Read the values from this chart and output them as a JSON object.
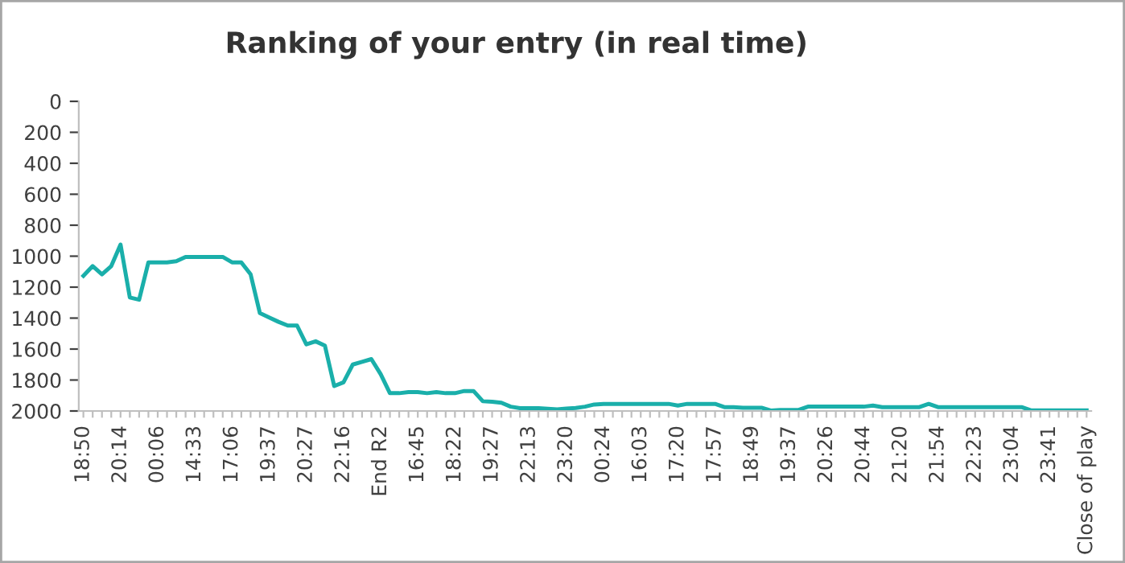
{
  "chart_data": {
    "type": "line",
    "title": "Ranking of your entry (in real time)",
    "categories": [
      "18:50",
      null,
      null,
      null,
      "20:14",
      null,
      null,
      null,
      "00:06",
      null,
      null,
      null,
      "14:33",
      null,
      null,
      null,
      "17:06",
      null,
      null,
      null,
      "19:37",
      null,
      null,
      null,
      "20:27",
      null,
      null,
      null,
      "22:16",
      null,
      null,
      null,
      "End R2",
      null,
      null,
      null,
      "16:45",
      null,
      null,
      null,
      "18:22",
      null,
      null,
      null,
      "19:27",
      null,
      null,
      null,
      "22:13",
      null,
      null,
      null,
      "23:20",
      null,
      null,
      null,
      "00:24",
      null,
      null,
      null,
      "16:03",
      null,
      null,
      null,
      "17:20",
      null,
      null,
      null,
      "17:57",
      null,
      null,
      null,
      "18:49",
      null,
      null,
      null,
      "19:37",
      null,
      null,
      null,
      "20:26",
      null,
      null,
      null,
      "20:44",
      null,
      null,
      null,
      "21:20",
      null,
      null,
      null,
      "21:54",
      null,
      null,
      null,
      "22:23",
      null,
      null,
      null,
      "23:04",
      null,
      null,
      null,
      "23:41",
      null,
      null,
      null,
      "Close of play"
    ],
    "series": [
      {
        "color": "#1aafaa",
        "values": [
          1127,
          1064,
          1117,
          1064,
          925,
          1267,
          1281,
          1040,
          1040,
          1040,
          1033,
          1005,
          1005,
          1005,
          1005,
          1005,
          1040,
          1040,
          1117,
          1368,
          1396,
          1424,
          1448,
          1448,
          1570,
          1550,
          1578,
          1839,
          1815,
          1700,
          1682,
          1665,
          1762,
          1885,
          1885,
          1878,
          1878,
          1885,
          1878,
          1885,
          1885,
          1871,
          1871,
          1937,
          1940,
          1947,
          1972,
          1982,
          1982,
          1982,
          1986,
          1990,
          1985,
          1980,
          1972,
          1958,
          1954,
          1954,
          1954,
          1954,
          1954,
          1954,
          1954,
          1954,
          1965,
          1954,
          1954,
          1954,
          1954,
          1975,
          1975,
          1979,
          1979,
          1979,
          1997,
          1993,
          1993,
          1993,
          1972,
          1972,
          1972,
          1972,
          1972,
          1972,
          1972,
          1965,
          1975,
          1975,
          1975,
          1975,
          1975,
          1954,
          1975,
          1975,
          1975,
          1975,
          1975,
          1975,
          1975,
          1975,
          1975,
          1975,
          1996,
          1996,
          1996,
          1996,
          1996,
          1996,
          1996
        ]
      }
    ],
    "ylim": [
      2000,
      0
    ],
    "yticks": [
      0,
      200,
      400,
      600,
      800,
      1000,
      1200,
      1400,
      1600,
      1800,
      2000
    ],
    "grid": false,
    "legend": false,
    "marker": "none",
    "line_style": "solid"
  }
}
